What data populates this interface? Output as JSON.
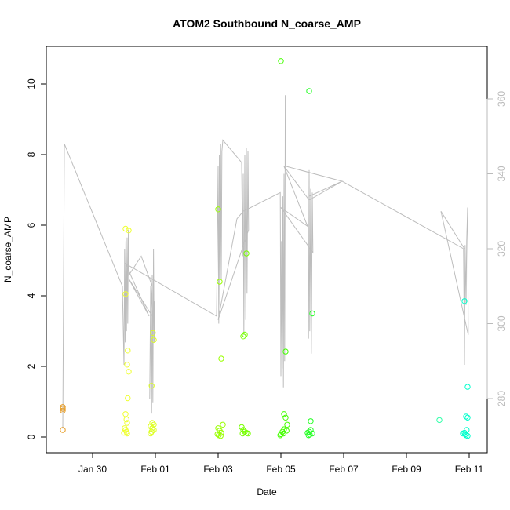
{
  "chart_data": {
    "type": "scatter",
    "title": "ATOM2 Southbound N_coarse_AMP",
    "xlabel": "Date",
    "ylabel": "N_coarse_AMP",
    "x_ticks": [
      "Jan 30",
      "Feb 01",
      "Feb 03",
      "Feb 05",
      "Feb 07",
      "Feb 09",
      "Feb 11"
    ],
    "xlim": [
      -1.95,
      11.35
    ],
    "ylim": [
      -0.4,
      11.0
    ],
    "y_ticks": [
      0,
      2,
      4,
      6,
      8,
      10
    ],
    "grid": false,
    "legend": "none",
    "color_scale": [
      "#e69a20",
      "#ffff00",
      "#00ff00",
      "#00ffcc"
    ],
    "series": [
      {
        "points": [
          {
            "x": -1.95,
            "y": 0.8,
            "c": "#e69a20"
          },
          {
            "x": -1.95,
            "y": 0.85,
            "c": "#e69a20"
          },
          {
            "x": -1.95,
            "y": 0.75,
            "c": "#e69a20"
          },
          {
            "x": -1.95,
            "y": 0.2,
            "c": "#e69a20"
          },
          {
            "x": 0.05,
            "y": 5.9,
            "c": "#eeff30"
          },
          {
            "x": 0.05,
            "y": 4.05,
            "c": "#eeff30"
          },
          {
            "x": 0.15,
            "y": 5.85,
            "c": "#eeff30"
          },
          {
            "x": 0.12,
            "y": 2.45,
            "c": "#eeff30"
          },
          {
            "x": 0.1,
            "y": 2.05,
            "c": "#eeff30"
          },
          {
            "x": 0.15,
            "y": 1.85,
            "c": "#eeff30"
          },
          {
            "x": 0.12,
            "y": 1.1,
            "c": "#eeff30"
          },
          {
            "x": 0.05,
            "y": 0.65,
            "c": "#eeff30"
          },
          {
            "x": 0.08,
            "y": 0.5,
            "c": "#eeff30"
          },
          {
            "x": 0.1,
            "y": 0.4,
            "c": "#eeff30"
          },
          {
            "x": 0.02,
            "y": 0.25,
            "c": "#eeff30"
          },
          {
            "x": 0.05,
            "y": 0.2,
            "c": "#eeff30"
          },
          {
            "x": 0.08,
            "y": 0.15,
            "c": "#eeff30"
          },
          {
            "x": 0.1,
            "y": 0.1,
            "c": "#eeff30"
          },
          {
            "x": 0.0,
            "y": 0.12,
            "c": "#eeff30"
          },
          {
            "x": 0.92,
            "y": 2.95,
            "c": "#ddff20"
          },
          {
            "x": 0.95,
            "y": 2.75,
            "c": "#ddff20"
          },
          {
            "x": 0.88,
            "y": 1.45,
            "c": "#ddff20"
          },
          {
            "x": 0.9,
            "y": 0.4,
            "c": "#ddff20"
          },
          {
            "x": 0.95,
            "y": 0.35,
            "c": "#ddff20"
          },
          {
            "x": 0.85,
            "y": 0.3,
            "c": "#ddff20"
          },
          {
            "x": 0.9,
            "y": 0.25,
            "c": "#ddff20"
          },
          {
            "x": 0.95,
            "y": 0.2,
            "c": "#ddff20"
          },
          {
            "x": 0.88,
            "y": 0.15,
            "c": "#ddff20"
          },
          {
            "x": 0.85,
            "y": 0.1,
            "c": "#ddff20"
          },
          {
            "x": 3.0,
            "y": 6.45,
            "c": "#99ff00"
          },
          {
            "x": 3.05,
            "y": 4.4,
            "c": "#99ff00"
          },
          {
            "x": 3.1,
            "y": 2.22,
            "c": "#99ff00"
          },
          {
            "x": 3.15,
            "y": 0.35,
            "c": "#99ff00"
          },
          {
            "x": 3.0,
            "y": 0.25,
            "c": "#99ff00"
          },
          {
            "x": 3.05,
            "y": 0.18,
            "c": "#99ff00"
          },
          {
            "x": 3.1,
            "y": 0.12,
            "c": "#99ff00"
          },
          {
            "x": 2.98,
            "y": 0.08,
            "c": "#99ff00"
          },
          {
            "x": 3.02,
            "y": 0.05,
            "c": "#99ff00"
          },
          {
            "x": 3.08,
            "y": 0.03,
            "c": "#99ff00"
          },
          {
            "x": 3.9,
            "y": 5.2,
            "c": "#77ff00"
          },
          {
            "x": 3.8,
            "y": 2.85,
            "c": "#77ff00"
          },
          {
            "x": 3.85,
            "y": 2.9,
            "c": "#77ff00"
          },
          {
            "x": 3.75,
            "y": 0.28,
            "c": "#77ff00"
          },
          {
            "x": 3.8,
            "y": 0.2,
            "c": "#77ff00"
          },
          {
            "x": 3.85,
            "y": 0.15,
            "c": "#77ff00"
          },
          {
            "x": 3.9,
            "y": 0.12,
            "c": "#77ff00"
          },
          {
            "x": 3.95,
            "y": 0.1,
            "c": "#77ff00"
          },
          {
            "x": 3.78,
            "y": 0.1,
            "c": "#77ff00"
          },
          {
            "x": 5.0,
            "y": 10.65,
            "c": "#44ff00"
          },
          {
            "x": 5.15,
            "y": 2.42,
            "c": "#44ff00"
          },
          {
            "x": 5.1,
            "y": 0.65,
            "c": "#44ff00"
          },
          {
            "x": 5.15,
            "y": 0.55,
            "c": "#44ff00"
          },
          {
            "x": 5.2,
            "y": 0.35,
            "c": "#44ff00"
          },
          {
            "x": 5.1,
            "y": 0.22,
            "c": "#44ff00"
          },
          {
            "x": 5.05,
            "y": 0.15,
            "c": "#44ff00"
          },
          {
            "x": 5.0,
            "y": 0.08,
            "c": "#44ff00"
          },
          {
            "x": 4.98,
            "y": 0.05,
            "c": "#44ff00"
          },
          {
            "x": 5.08,
            "y": 0.1,
            "c": "#44ff00"
          },
          {
            "x": 5.18,
            "y": 0.18,
            "c": "#44ff00"
          },
          {
            "x": 5.9,
            "y": 9.8,
            "c": "#22ff22"
          },
          {
            "x": 6.0,
            "y": 3.5,
            "c": "#22ff22"
          },
          {
            "x": 5.95,
            "y": 0.45,
            "c": "#22ff22"
          },
          {
            "x": 5.95,
            "y": 0.2,
            "c": "#22ff22"
          },
          {
            "x": 5.9,
            "y": 0.15,
            "c": "#22ff22"
          },
          {
            "x": 5.85,
            "y": 0.12,
            "c": "#22ff22"
          },
          {
            "x": 6.0,
            "y": 0.1,
            "c": "#22ff22"
          },
          {
            "x": 5.92,
            "y": 0.07,
            "c": "#22ff22"
          },
          {
            "x": 5.88,
            "y": 0.05,
            "c": "#22ff22"
          },
          {
            "x": 10.05,
            "y": 0.48,
            "c": "#33ffaa"
          },
          {
            "x": 10.85,
            "y": 3.85,
            "c": "#00ffcc"
          },
          {
            "x": 10.95,
            "y": 1.42,
            "c": "#00ffcc"
          },
          {
            "x": 10.9,
            "y": 0.58,
            "c": "#00ffcc"
          },
          {
            "x": 10.95,
            "y": 0.55,
            "c": "#00ffcc"
          },
          {
            "x": 10.92,
            "y": 0.2,
            "c": "#00ffcc"
          },
          {
            "x": 10.85,
            "y": 0.12,
            "c": "#00ffcc"
          },
          {
            "x": 10.8,
            "y": 0.1,
            "c": "#00ffcc"
          },
          {
            "x": 10.88,
            "y": 0.08,
            "c": "#00ffcc"
          },
          {
            "x": 10.9,
            "y": 0.05,
            "c": "#00ffcc"
          },
          {
            "x": 10.95,
            "y": 0.03,
            "c": "#00ffcc"
          }
        ]
      }
    ],
    "secondary_axis": {
      "side": "right",
      "ylim": [
        268,
        370
      ],
      "y_ticks": [
        280,
        300,
        320,
        340,
        360
      ],
      "color": "#bbbbbb",
      "line_color": "#bdbdbd",
      "line": [
        {
          "x": -1.95,
          "y": 272
        },
        {
          "x": -1.9,
          "y": 348
        },
        {
          "x": -0.05,
          "y": 310
        },
        {
          "x": 0.0,
          "y": 289
        },
        {
          "x": 0.02,
          "y": 320
        },
        {
          "x": 0.04,
          "y": 295
        },
        {
          "x": 0.06,
          "y": 322
        },
        {
          "x": 0.08,
          "y": 298
        },
        {
          "x": 0.1,
          "y": 323
        },
        {
          "x": 0.12,
          "y": 300
        },
        {
          "x": 0.14,
          "y": 325
        },
        {
          "x": 0.16,
          "y": 313
        },
        {
          "x": 0.55,
          "y": 318
        },
        {
          "x": 0.9,
          "y": 310
        },
        {
          "x": 0.85,
          "y": 302
        },
        {
          "x": 0.82,
          "y": 280
        },
        {
          "x": 0.85,
          "y": 310
        },
        {
          "x": 0.88,
          "y": 276
        },
        {
          "x": 0.9,
          "y": 313
        },
        {
          "x": 0.92,
          "y": 279
        },
        {
          "x": 0.94,
          "y": 320
        },
        {
          "x": 0.96,
          "y": 295
        },
        {
          "x": 0.98,
          "y": 306
        },
        {
          "x": 0.9,
          "y": 302
        },
        {
          "x": 0.15,
          "y": 312
        },
        {
          "x": 0.8,
          "y": 302
        },
        {
          "x": 0.05,
          "y": 316
        },
        {
          "x": 2.95,
          "y": 302
        },
        {
          "x": 3.0,
          "y": 342
        },
        {
          "x": 3.02,
          "y": 300
        },
        {
          "x": 3.04,
          "y": 345
        },
        {
          "x": 3.06,
          "y": 305
        },
        {
          "x": 3.08,
          "y": 348
        },
        {
          "x": 3.1,
          "y": 312
        },
        {
          "x": 3.12,
          "y": 346
        },
        {
          "x": 3.15,
          "y": 349
        },
        {
          "x": 3.75,
          "y": 343
        },
        {
          "x": 3.78,
          "y": 318
        },
        {
          "x": 3.8,
          "y": 340
        },
        {
          "x": 3.82,
          "y": 297
        },
        {
          "x": 3.85,
          "y": 345
        },
        {
          "x": 3.88,
          "y": 301
        },
        {
          "x": 3.9,
          "y": 347
        },
        {
          "x": 3.92,
          "y": 308
        },
        {
          "x": 3.95,
          "y": 346
        },
        {
          "x": 3.97,
          "y": 325
        },
        {
          "x": 3.0,
          "y": 301
        },
        {
          "x": 3.6,
          "y": 328
        },
        {
          "x": 3.8,
          "y": 330
        },
        {
          "x": 4.98,
          "y": 335
        },
        {
          "x": 5.0,
          "y": 286
        },
        {
          "x": 5.02,
          "y": 322
        },
        {
          "x": 5.04,
          "y": 288
        },
        {
          "x": 5.06,
          "y": 334
        },
        {
          "x": 5.08,
          "y": 283
        },
        {
          "x": 5.1,
          "y": 340
        },
        {
          "x": 5.12,
          "y": 290
        },
        {
          "x": 5.14,
          "y": 361
        },
        {
          "x": 5.16,
          "y": 342
        },
        {
          "x": 6.95,
          "y": 338
        },
        {
          "x": 5.9,
          "y": 334
        },
        {
          "x": 5.88,
          "y": 296
        },
        {
          "x": 5.9,
          "y": 341
        },
        {
          "x": 5.92,
          "y": 298
        },
        {
          "x": 5.95,
          "y": 336
        },
        {
          "x": 5.97,
          "y": 292
        },
        {
          "x": 6.0,
          "y": 335
        },
        {
          "x": 6.02,
          "y": 319
        },
        {
          "x": 5.0,
          "y": 331
        },
        {
          "x": 5.85,
          "y": 326
        },
        {
          "x": 5.1,
          "y": 342
        },
        {
          "x": 5.9,
          "y": 333
        },
        {
          "x": 6.95,
          "y": 338
        },
        {
          "x": 10.82,
          "y": 320
        },
        {
          "x": 10.85,
          "y": 289
        },
        {
          "x": 10.87,
          "y": 321
        },
        {
          "x": 10.9,
          "y": 305
        },
        {
          "x": 10.92,
          "y": 322
        },
        {
          "x": 10.95,
          "y": 331
        },
        {
          "x": 10.97,
          "y": 297
        },
        {
          "x": 10.1,
          "y": 330
        },
        {
          "x": 10.85,
          "y": 320
        }
      ]
    }
  }
}
